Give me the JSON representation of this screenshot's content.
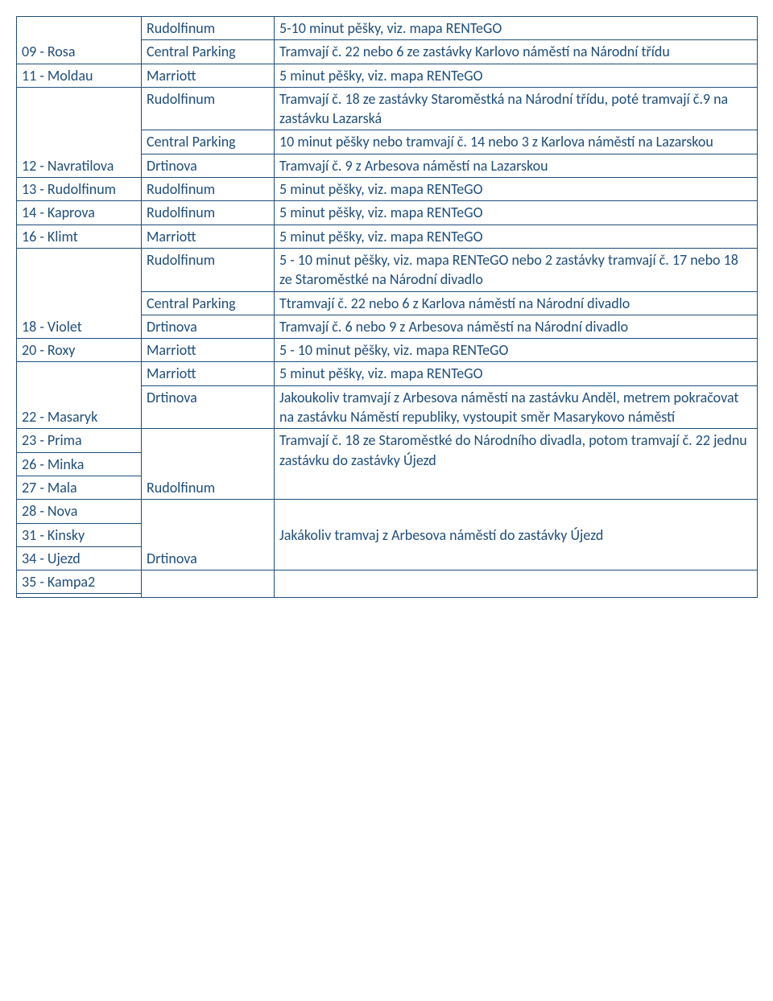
{
  "colors": {
    "text": "#1f4e79",
    "border": "#1f4e79",
    "background": "#ffffff"
  },
  "font": {
    "family": "Calibri",
    "size_pt": 14
  },
  "rows": [
    {
      "c1": "",
      "c2": "Rudolfinum",
      "c3": "5-10 minut pěšky, viz. mapa RENTeGO"
    },
    {
      "c1": "09 - Rosa",
      "c2": "Central Parking",
      "c3": "Tramvají č. 22 nebo 6 ze zastávky Karlovo náměstí na Národní třídu"
    },
    {
      "c1": "11 - Moldau",
      "c2": "Marriott",
      "c3": "5 minut pěšky, viz. mapa RENTeGO"
    },
    {
      "c1": "",
      "c2": "Rudolfinum",
      "c3": "Tramvají č. 18 ze zastávky Staroměstká na Národní třídu, poté tramvají č.9 na zastávku Lazarská"
    },
    {
      "c1": "12 -",
      "c2": "Central Parking",
      "c3": "10 minut pěšky nebo tramvají č. 14 nebo 3 z Karlova náměstí na Lazarskou"
    },
    {
      "c1": "Navratilova",
      "c2": "Drtinova",
      "c3": "Tramvají č. 9 z Arbesova náměstí na Lazarskou"
    },
    {
      "c1": "13 - Rudolfinum",
      "c2": "Rudolfinum",
      "c3": "5 minut pěšky, viz. mapa RENTeGO"
    },
    {
      "c1": "14 - Kaprova",
      "c2": "Rudolfinum",
      "c3": "5 minut pěšky, viz. mapa RENTeGO"
    },
    {
      "c1": "16 - Klimt",
      "c2": "Marriott",
      "c3": "5 minut pěšky, viz. mapa RENTeGO"
    },
    {
      "c1": "",
      "c2": "Rudolfinum",
      "c3": "5 - 10 minut pěšky, viz. mapa RENTeGO nebo 2 zastávky tramvají č. 17 nebo 18 ze Staroměstké na Národní divadlo"
    },
    {
      "c1": "",
      "c2": "Central Parking",
      "c3": "Ttramvají č. 22 nebo 6 z Karlova náměstí na Národní divadlo"
    },
    {
      "c1": "18 - Violet",
      "c2": "Drtinova",
      "c3": " Tramvají č. 6 nebo 9 z Arbesova náměstí na Národní divadlo"
    },
    {
      "c1": "20 - Roxy",
      "c2": "Marriott",
      "c3": "5 - 10 minut pěšky, viz. mapa RENTeGO"
    },
    {
      "c1": "",
      "c2": "Marriott",
      "c3": "5 minut pěšky, viz. mapa RENTeGO"
    },
    {
      "c1": "22 - Masaryk",
      "c2": "Drtinova",
      "c3": "Jakoukoliv tramvají z Arbesova náměstí na zastávku Anděl, metrem pokračovat na zastávku Náměstí republiky, vystoupit směr Masarykovo náměstí"
    },
    {
      "c1": "23 - Prima",
      "c2": "",
      "c3": "Tramvají č. 18 ze Staroměstké do Národního divadla,"
    },
    {
      "c1": "26 - Minka",
      "c2": "",
      "c3": "potom tramvají č. 22 jednu zastávku do zastávky"
    },
    {
      "c1": "27 - Mala",
      "c2": "Rudolfinum",
      "c3": "Újezd"
    },
    {
      "c1": "28 - Nova",
      "c2": "",
      "c3": ""
    },
    {
      "c1": "31 - Kinsky",
      "c2": "",
      "c3": "Jakákoliv tramvaj z Arbesova náměstí do zastávky"
    },
    {
      "c1": "34 - Ujezd",
      "c2": "Drtinova",
      "c3": "Újezd"
    },
    {
      "c1": "35 - Kampa2",
      "c2": "",
      "c3": ""
    },
    {
      "c1": "",
      "c2": "",
      "c3": ""
    }
  ],
  "merges": {
    "col1": [
      [
        0,
        1
      ],
      [
        3,
        5
      ],
      [
        9,
        11
      ],
      [
        13,
        14
      ]
    ],
    "col2": [
      [
        15,
        17
      ],
      [
        18,
        20
      ],
      [
        21,
        22
      ]
    ],
    "col3": [
      [
        15,
        17
      ],
      [
        18,
        20
      ],
      [
        21,
        22
      ]
    ]
  }
}
